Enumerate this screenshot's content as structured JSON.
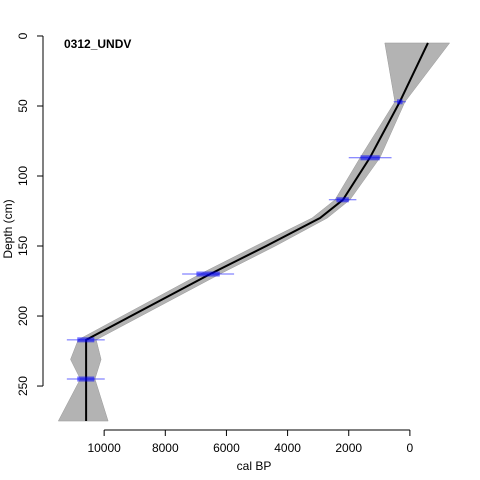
{
  "chart_data": {
    "type": "line",
    "title": "0312_UNDV",
    "x_label": "cal BP",
    "y_label": "Depth (cm)",
    "xlim": [
      12000,
      -1770
    ],
    "ylim": [
      281.4,
      -5.7
    ],
    "xticks": [
      10000,
      8000,
      6000,
      4000,
      2000,
      0
    ],
    "yticks": [
      0,
      50,
      100,
      150,
      200,
      250
    ],
    "line_color": "#000000",
    "band_color": "#b3b3b3",
    "depth": [
      5,
      47,
      87,
      117,
      130,
      150,
      170,
      217,
      231,
      245,
      275
    ],
    "median": [
      -590,
      330,
      1310,
      2190,
      2940,
      4700,
      6530,
      10590,
      10590,
      10590,
      10590
    ],
    "max": [
      820,
      490,
      1630,
      2450,
      3200,
      5050,
      6860,
      10850,
      11100,
      10780,
      11500
    ],
    "min": [
      -1300,
      160,
      980,
      1960,
      2700,
      4400,
      6210,
      10260,
      10100,
      10300,
      9870
    ],
    "dates": {
      "color": "#0000ff",
      "depth": [
        47,
        87,
        117,
        170,
        217,
        245
      ],
      "age": [
        330,
        1300,
        2200,
        6600,
        10600,
        10600
      ],
      "error": [
        200,
        700,
        450,
        850,
        620,
        620
      ]
    }
  }
}
